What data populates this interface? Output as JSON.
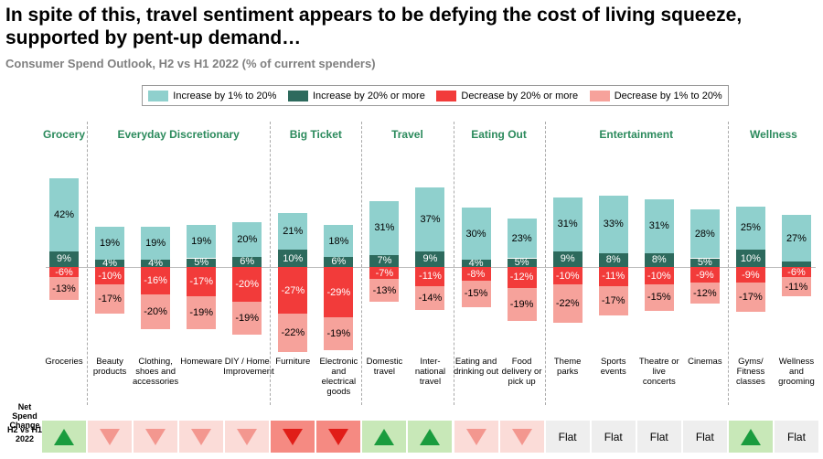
{
  "title": "In spite of this, travel sentiment appears to be defying the cost of living squeeze, supported by pent-up demand…",
  "chart_data": {
    "type": "diverging-stacked-bar",
    "subtitle": "Consumer Spend Outlook, H2 vs H1 2022 (% of current spenders)",
    "groups": [
      {
        "name": "Grocery",
        "categories": [
          "Groceries"
        ]
      },
      {
        "name": "Everyday Discretionary",
        "categories": [
          "Beauty products",
          "Clothing, shoes and accessories",
          "Homeware",
          "DIY / Home Improvement"
        ]
      },
      {
        "name": "Big Ticket",
        "categories": [
          "Furniture",
          "Electronic and electrical goods"
        ]
      },
      {
        "name": "Travel",
        "categories": [
          "Domestic travel",
          "Inter-national travel"
        ]
      },
      {
        "name": "Eating Out",
        "categories": [
          "Eating and drinking out",
          "Food delivery or pick up"
        ]
      },
      {
        "name": "Entertainment",
        "categories": [
          "Theme parks",
          "Sports events",
          "Theatre or live concerts",
          "Cinemas"
        ]
      },
      {
        "name": "Wellness",
        "categories": [
          "Gyms/ Fitness classes",
          "Wellness and grooming"
        ]
      }
    ],
    "series": [
      {
        "name": "Increase by 1% to 20%",
        "color": "#8fd0cd",
        "label_color": "#000",
        "values": [
          42,
          19,
          19,
          19,
          20,
          21,
          18,
          31,
          37,
          30,
          23,
          31,
          33,
          31,
          28,
          25,
          27
        ],
        "value_labels": [
          "42%",
          "19%",
          "19%",
          "19%",
          "20%",
          "21%",
          "18%",
          "31%",
          "37%",
          "30%",
          "23%",
          "31%",
          "33%",
          "31%",
          "28%",
          "25%",
          "27%"
        ]
      },
      {
        "name": "Increase by 20% or more",
        "color": "#2d6a5d",
        "label_color": "#fff",
        "values": [
          9,
          4,
          4,
          5,
          6,
          10,
          6,
          7,
          9,
          4,
          5,
          9,
          8,
          8,
          5,
          10,
          3
        ],
        "value_labels": [
          "9%",
          "4%",
          "4%",
          "5%",
          "6%",
          "10%",
          "6%",
          "7%",
          "9%",
          "4%",
          "5%",
          "9%",
          "8%",
          "8%",
          "5%",
          "10%",
          null
        ]
      },
      {
        "name": "Decrease by 20% or more",
        "color": "#f23b3a",
        "label_color": "#fff",
        "values": [
          -6,
          -10,
          -16,
          -17,
          -20,
          -27,
          -29,
          -7,
          -11,
          -8,
          -12,
          -10,
          -11,
          -10,
          -9,
          -9,
          -6
        ],
        "value_labels": [
          "-6%",
          "-10%",
          "-16%",
          "-17%",
          "-20%",
          "-27%",
          "-29%",
          "-7%",
          "-11%",
          "-8%",
          "-12%",
          "-10%",
          "-11%",
          "-10%",
          "-9%",
          "-9%",
          "-6%"
        ]
      },
      {
        "name": "Decrease by 1% to 20%",
        "color": "#f6a29b",
        "label_color": "#000",
        "values": [
          -13,
          -17,
          -20,
          -19,
          -19,
          -22,
          -19,
          -13,
          -14,
          -15,
          -19,
          -22,
          -17,
          -15,
          -12,
          -17,
          -11
        ],
        "value_labels": [
          "-13%",
          "-17%",
          "-20%",
          "-19%",
          "-19%",
          "-22%",
          "-19%",
          "-13%",
          "-14%",
          "-15%",
          "-19%",
          "-22%",
          "-17%",
          "-15%",
          "-12%",
          "-17%",
          "-11%"
        ]
      }
    ],
    "net_spend_change": {
      "label": "Net Spend Change",
      "period": "H2 vs H1 2022",
      "values": [
        "up",
        "down",
        "down",
        "down",
        "down",
        "down-strong",
        "down-strong",
        "up",
        "up",
        "down",
        "down",
        "Flat",
        "Flat",
        "Flat",
        "Flat",
        "up",
        "Flat"
      ]
    }
  }
}
